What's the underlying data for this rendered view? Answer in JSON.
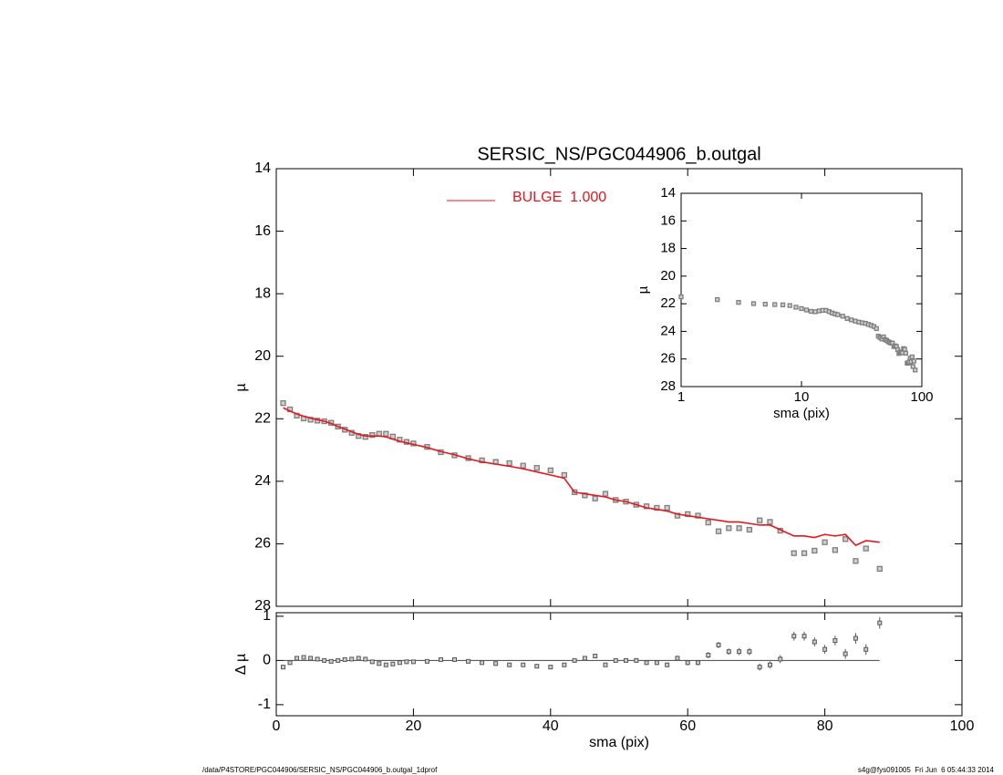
{
  "chart_data": [
    {
      "type": "scatter",
      "title": "SERSIC_NS/PGC044906_b.outgal",
      "ylabel": "µ",
      "xlim": [
        0,
        100
      ],
      "xticks": [
        0,
        20,
        40,
        60,
        80,
        100
      ],
      "ylim": [
        28,
        14
      ],
      "yticks": [
        14,
        16,
        18,
        20,
        22,
        24,
        26,
        28
      ],
      "legend": "top",
      "x": [
        1,
        2,
        3,
        4,
        5,
        6,
        7,
        8,
        9,
        10,
        11,
        12,
        13,
        14,
        15,
        16,
        17,
        18,
        19,
        20,
        22,
        24,
        26,
        28,
        30,
        32,
        34,
        36,
        38,
        40,
        42,
        43.5,
        45,
        46.5,
        48,
        49.5,
        51,
        52.5,
        54,
        55.5,
        57,
        58.5,
        60,
        61.5,
        63,
        64.5,
        66,
        67.5,
        69,
        70.5,
        72,
        73.5,
        75.5,
        77,
        78.5,
        80,
        81.5,
        83,
        84.5,
        86,
        88
      ],
      "series": [
        {
          "color": "#7f7f7f",
          "values": [
            21.5,
            21.7,
            21.9,
            21.99,
            22.03,
            22.06,
            22.08,
            22.13,
            22.25,
            22.35,
            22.45,
            22.55,
            22.58,
            22.52,
            22.48,
            22.48,
            22.57,
            22.67,
            22.74,
            22.79,
            22.9,
            23.07,
            23.17,
            23.26,
            23.33,
            23.38,
            23.42,
            23.5,
            23.57,
            23.65,
            23.8,
            24.35,
            24.45,
            24.55,
            24.4,
            24.6,
            24.65,
            24.75,
            24.8,
            24.85,
            24.85,
            25.1,
            25.05,
            25.1,
            25.32,
            25.6,
            25.5,
            25.5,
            25.55,
            25.25,
            25.3,
            25.58,
            26.3,
            26.3,
            26.22,
            25.95,
            26.2,
            25.85,
            26.55,
            26.15,
            26.8
          ]
        },
        {
          "name": "BULGE  1.000",
          "color": "#e8141e",
          "type": "line",
          "values": [
            21.65,
            21.75,
            21.85,
            21.92,
            21.98,
            22.03,
            22.08,
            22.15,
            22.25,
            22.33,
            22.42,
            22.5,
            22.55,
            22.55,
            22.55,
            22.58,
            22.65,
            22.72,
            22.77,
            22.82,
            22.92,
            23.05,
            23.15,
            23.28,
            23.38,
            23.45,
            23.52,
            23.6,
            23.7,
            23.8,
            23.9,
            24.35,
            24.4,
            24.45,
            24.5,
            24.6,
            24.65,
            24.75,
            24.85,
            24.9,
            24.95,
            25.05,
            25.1,
            25.15,
            25.2,
            25.25,
            25.3,
            25.3,
            25.35,
            25.4,
            25.4,
            25.55,
            25.75,
            25.75,
            25.8,
            25.7,
            25.75,
            25.7,
            26.05,
            25.9,
            25.95
          ]
        }
      ]
    },
    {
      "type": "errorbar",
      "xlabel": "sma (pix)",
      "ylabel": "Δ µ",
      "xlim": [
        0,
        100
      ],
      "xticks": [
        0,
        20,
        40,
        60,
        80,
        100
      ],
      "ylim": [
        -1.25,
        1.08
      ],
      "yticks": [
        -1,
        0,
        1
      ],
      "color": "#555555",
      "values": [
        -0.15,
        -0.05,
        0.05,
        0.07,
        0.05,
        0.03,
        0,
        -0.02,
        0,
        0.02,
        0.03,
        0.05,
        0.03,
        -0.03,
        -0.07,
        -0.1,
        -0.08,
        -0.05,
        -0.03,
        -0.03,
        -0.02,
        0.02,
        0.02,
        -0.02,
        -0.05,
        -0.07,
        -0.1,
        -0.1,
        -0.13,
        -0.15,
        -0.1,
        0,
        0.05,
        0.1,
        -0.1,
        0,
        0,
        0,
        -0.05,
        -0.05,
        -0.1,
        0.05,
        -0.05,
        -0.05,
        0.12,
        0.35,
        0.2,
        0.2,
        0.2,
        -0.15,
        -0.1,
        0.03,
        0.55,
        0.55,
        0.42,
        0.25,
        0.45,
        0.15,
        0.5,
        0.25,
        0.85
      ],
      "errors": [
        0.02,
        0.02,
        0.02,
        0.02,
        0.02,
        0.02,
        0.02,
        0.02,
        0.02,
        0.02,
        0.02,
        0.02,
        0.02,
        0.02,
        0.02,
        0.02,
        0.02,
        0.02,
        0.02,
        0.02,
        0.02,
        0.02,
        0.02,
        0.02,
        0.03,
        0.03,
        0.03,
        0.03,
        0.03,
        0.03,
        0.04,
        0.04,
        0.04,
        0.04,
        0.04,
        0.04,
        0.05,
        0.05,
        0.05,
        0.05,
        0.05,
        0.06,
        0.06,
        0.06,
        0.07,
        0.07,
        0.07,
        0.08,
        0.08,
        0.08,
        0.08,
        0.09,
        0.1,
        0.1,
        0.1,
        0.1,
        0.11,
        0.11,
        0.12,
        0.12,
        0.13
      ]
    },
    {
      "type": "inset",
      "xlabel": "sma (pix)",
      "ylabel": "µ",
      "log_x": true,
      "xlim": [
        1,
        100
      ],
      "xticks": [
        1,
        10,
        100
      ],
      "ylim": [
        28,
        14
      ],
      "yticks": [
        14,
        16,
        18,
        20,
        22,
        24,
        26,
        28
      ]
    }
  ],
  "footer_left": "/data/P4STORE/PGC044906/SERSIC_NS/PGC044906_b.outgal_1dprof",
  "footer_right": "s4g@fys091005  Fri Jun  6 05:44:33 2014"
}
